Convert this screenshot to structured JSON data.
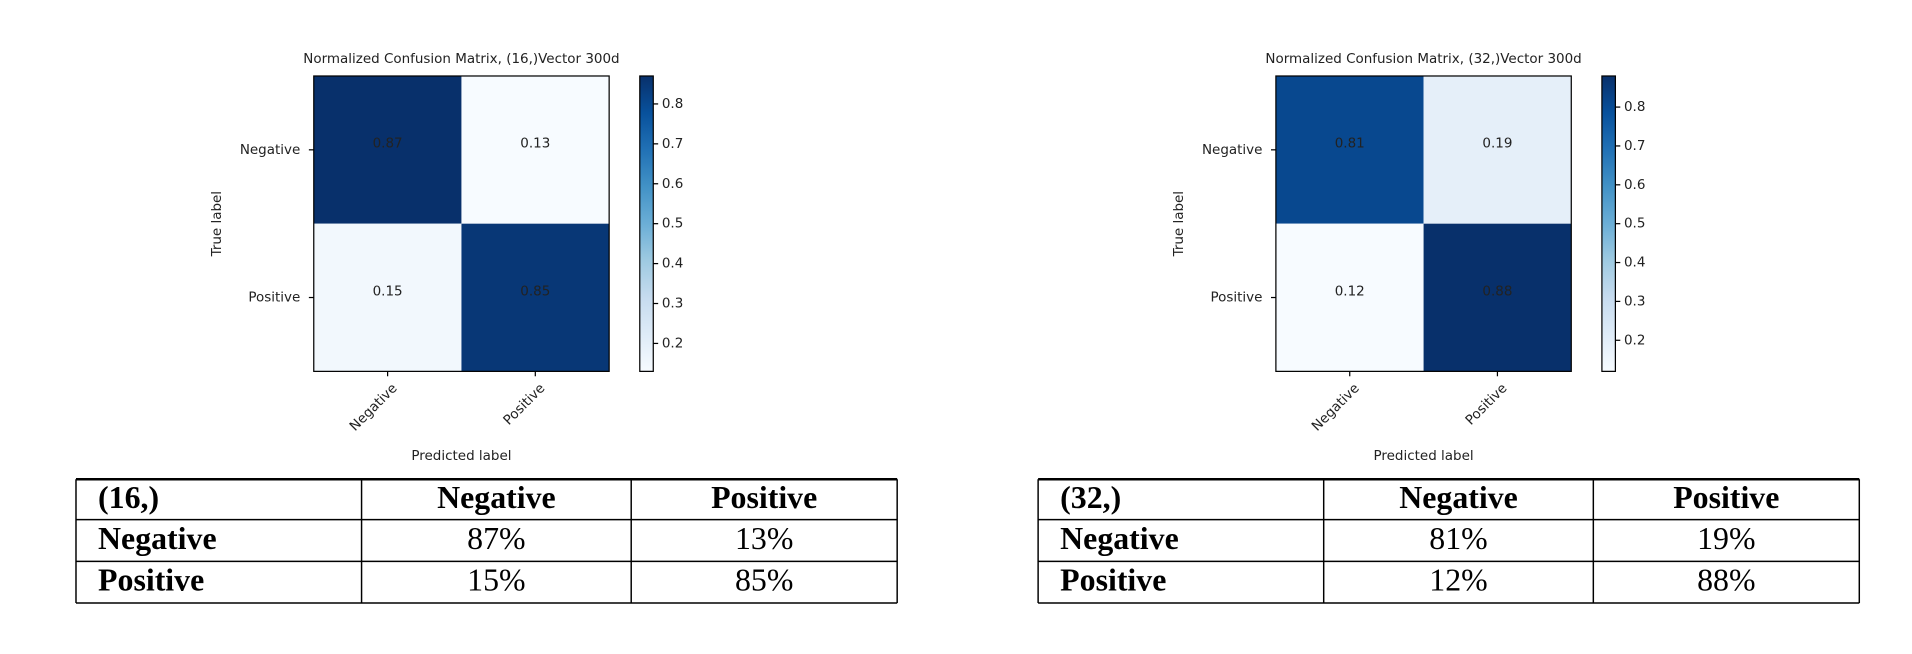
{
  "chart_data": [
    {
      "type": "heatmap",
      "title": "Normalized Confusion Matrix, (16,)Vector 300d",
      "x_label": "Predicted label",
      "y_label": "True label",
      "x_categories": [
        "Negative",
        "Positive"
      ],
      "y_categories": [
        "Negative",
        "Positive"
      ],
      "values": [
        [
          0.87,
          0.13
        ],
        [
          0.15,
          0.85
        ]
      ],
      "clim": [
        0.13,
        0.87
      ],
      "cticks": [
        0.2,
        0.3,
        0.4,
        0.5,
        0.6,
        0.7,
        0.8
      ],
      "colormap": [
        "#f7fbff",
        "#deebf7",
        "#c6dbef",
        "#9ecae1",
        "#6baed6",
        "#4292c6",
        "#2171b5",
        "#08519c",
        "#08306b"
      ]
    },
    {
      "type": "heatmap",
      "title": "Normalized Confusion Matrix, (32,)Vector 300d",
      "x_label": "Predicted label",
      "y_label": "True label",
      "x_categories": [
        "Negative",
        "Positive"
      ],
      "y_categories": [
        "Negative",
        "Positive"
      ],
      "values": [
        [
          0.81,
          0.19
        ],
        [
          0.12,
          0.88
        ]
      ],
      "clim": [
        0.12,
        0.88
      ],
      "cticks": [
        0.2,
        0.3,
        0.4,
        0.5,
        0.6,
        0.7,
        0.8
      ],
      "colormap": [
        "#f7fbff",
        "#deebf7",
        "#c6dbef",
        "#9ecae1",
        "#6baed6",
        "#4292c6",
        "#2171b5",
        "#08519c",
        "#08306b"
      ]
    }
  ],
  "tables": [
    {
      "header": [
        "(16,)",
        "Negative",
        "Positive"
      ],
      "rows": [
        [
          "Negative",
          "87%",
          "13%"
        ],
        [
          "Positive",
          "15%",
          "85%"
        ]
      ]
    },
    {
      "header": [
        "(32,)",
        "Negative",
        "Positive"
      ],
      "rows": [
        [
          "Negative",
          "81%",
          "19%"
        ],
        [
          "Positive",
          "12%",
          "88%"
        ]
      ]
    }
  ]
}
